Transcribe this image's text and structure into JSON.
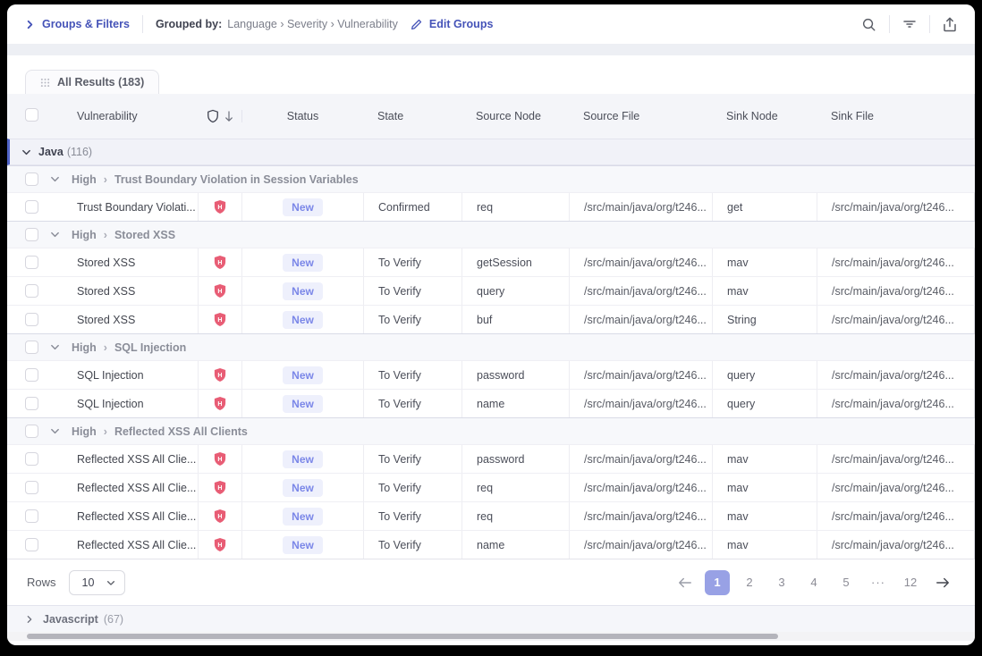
{
  "topbar": {
    "groups_filters_label": "Groups & Filters",
    "grouped_by_label": "Grouped by:",
    "grouped_by_path": "Language › Severity › Vulnerability",
    "edit_groups_label": "Edit Groups"
  },
  "tab": {
    "label": "All Results (183)"
  },
  "table": {
    "columns": {
      "vulnerability": "Vulnerability",
      "status": "Status",
      "state": "State",
      "source_node": "Source Node",
      "source_file": "Source File",
      "sink_node": "Sink Node",
      "sink_file": "Sink File"
    }
  },
  "language_group": {
    "name": "Java",
    "count": "(116)"
  },
  "groups": [
    {
      "severity": "High",
      "name": "Trust Boundary Violation in Session Variables",
      "rows": [
        {
          "vulnerability": "Trust Boundary Violati...",
          "severity": "H",
          "status": "New",
          "state": "Confirmed",
          "source_node": "req",
          "source_file": "/src/main/java/org/t246...",
          "sink_node": "get",
          "sink_file": "/src/main/java/org/t246..."
        }
      ]
    },
    {
      "severity": "High",
      "name": "Stored XSS",
      "rows": [
        {
          "vulnerability": "Stored XSS",
          "severity": "H",
          "status": "New",
          "state": "To Verify",
          "source_node": "getSession",
          "source_file": "/src/main/java/org/t246...",
          "sink_node": "mav",
          "sink_file": "/src/main/java/org/t246..."
        },
        {
          "vulnerability": "Stored XSS",
          "severity": "H",
          "status": "New",
          "state": "To Verify",
          "source_node": "query",
          "source_file": "/src/main/java/org/t246...",
          "sink_node": "mav",
          "sink_file": "/src/main/java/org/t246..."
        },
        {
          "vulnerability": "Stored XSS",
          "severity": "H",
          "status": "New",
          "state": "To Verify",
          "source_node": "buf",
          "source_file": "/src/main/java/org/t246...",
          "sink_node": "String",
          "sink_file": "/src/main/java/org/t246..."
        }
      ]
    },
    {
      "severity": "High",
      "name": "SQL Injection",
      "rows": [
        {
          "vulnerability": "SQL Injection",
          "severity": "H",
          "status": "New",
          "state": "To Verify",
          "source_node": "password",
          "source_file": "/src/main/java/org/t246...",
          "sink_node": "query",
          "sink_file": "/src/main/java/org/t246..."
        },
        {
          "vulnerability": "SQL Injection",
          "severity": "H",
          "status": "New",
          "state": "To Verify",
          "source_node": "name",
          "source_file": "/src/main/java/org/t246...",
          "sink_node": "query",
          "sink_file": "/src/main/java/org/t246..."
        }
      ]
    },
    {
      "severity": "High",
      "name": "Reflected XSS All Clients",
      "rows": [
        {
          "vulnerability": "Reflected XSS All Clie...",
          "severity": "H",
          "status": "New",
          "state": "To Verify",
          "source_node": "password",
          "source_file": "/src/main/java/org/t246...",
          "sink_node": "mav",
          "sink_file": "/src/main/java/org/t246..."
        },
        {
          "vulnerability": "Reflected XSS All Clie...",
          "severity": "H",
          "status": "New",
          "state": "To Verify",
          "source_node": "req",
          "source_file": "/src/main/java/org/t246...",
          "sink_node": "mav",
          "sink_file": "/src/main/java/org/t246..."
        },
        {
          "vulnerability": "Reflected XSS All Clie...",
          "severity": "H",
          "status": "New",
          "state": "To Verify",
          "source_node": "req",
          "source_file": "/src/main/java/org/t246...",
          "sink_node": "mav",
          "sink_file": "/src/main/java/org/t246..."
        },
        {
          "vulnerability": "Reflected XSS All Clie...",
          "severity": "H",
          "status": "New",
          "state": "To Verify",
          "source_node": "name",
          "source_file": "/src/main/java/org/t246...",
          "sink_node": "mav",
          "sink_file": "/src/main/java/org/t246..."
        }
      ]
    }
  ],
  "pagination": {
    "rows_label": "Rows",
    "rows_per_page": "10",
    "pages": [
      "1",
      "2",
      "3",
      "4",
      "5",
      "···",
      "12"
    ],
    "active_page": "1"
  },
  "collapsed_group": {
    "name": "Javascript",
    "count": "(67)"
  },
  "colors": {
    "accent_indigo": "#4553b8",
    "severity_high_red": "#e85d75",
    "new_badge_bg": "#eef0fc",
    "new_badge_text": "#7b87e8",
    "active_page_bg": "#98a1e5",
    "group_accent_bar": "#5165c9"
  }
}
